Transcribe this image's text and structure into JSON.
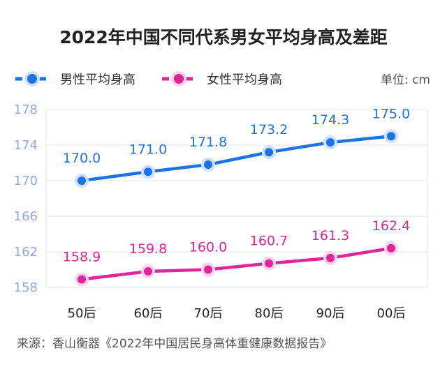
{
  "chart_data": {
    "type": "line",
    "title": "2022年中国不同代系男女平均身高及差距",
    "unit": "单位: cm",
    "categories": [
      "50后",
      "60后",
      "70后",
      "80后",
      "90后",
      "00后"
    ],
    "series": [
      {
        "name": "男性平均身高",
        "color": "#1a73e8",
        "values": [
          170.0,
          171.0,
          171.8,
          173.2,
          174.3,
          175.0
        ],
        "labels": [
          "170.0",
          "171.0",
          "171.8",
          "173.2",
          "174.3",
          "175.0"
        ]
      },
      {
        "name": "女性平均身高",
        "color": "#e0259a",
        "values": [
          158.9,
          159.8,
          160.0,
          160.7,
          161.3,
          162.4
        ],
        "labels": [
          "158.9",
          "159.8",
          "160.0",
          "160.7",
          "161.3",
          "162.4"
        ]
      }
    ],
    "ylim": [
      158,
      178
    ],
    "yticks": [
      "178",
      "174",
      "170",
      "166",
      "162",
      "158"
    ],
    "grid": true,
    "legend": "top-left",
    "source": "来源：香山衡器《2022年中国居民身高体重健康数据报告》"
  }
}
